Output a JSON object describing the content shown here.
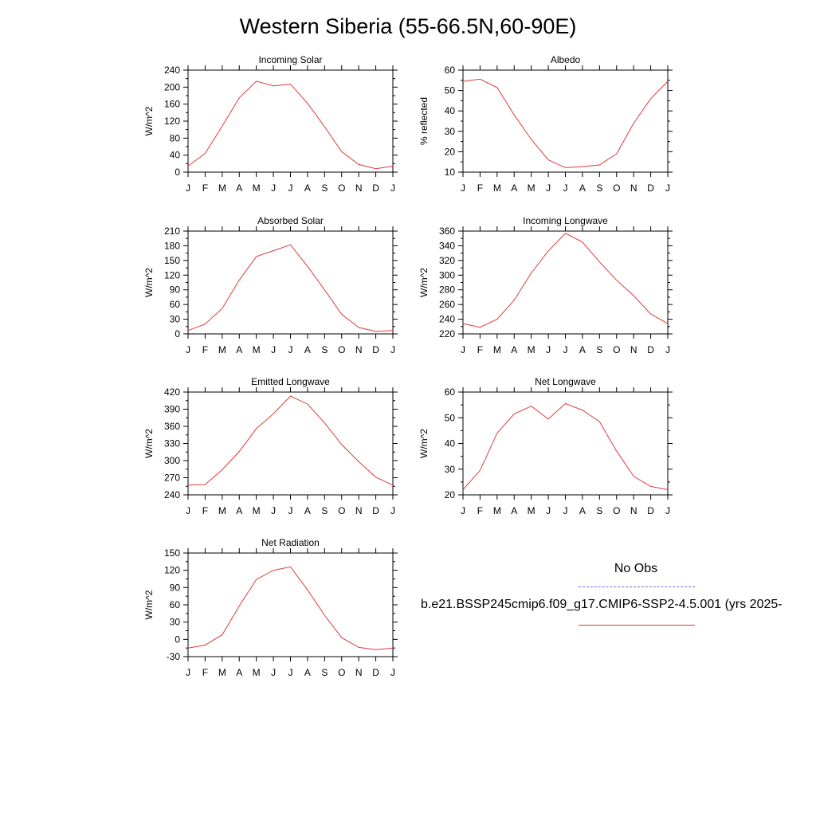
{
  "title": "Western Siberia (55-66.5N,60-90E)",
  "legend": {
    "obs_label": "No Obs",
    "obs_color": "#6f6fe0",
    "case_label": "b.e21.BSSP245cmip6.f09_g17.CMIP6-SSP2-4.5.001 (yrs 2025-",
    "case_color": "#e03a3a"
  },
  "chart_data": [
    {
      "type": "line",
      "title": "Incoming Solar",
      "ylabel": "W/m^2",
      "categories": [
        "J",
        "F",
        "M",
        "A",
        "M",
        "J",
        "J",
        "A",
        "S",
        "O",
        "N",
        "D",
        "J"
      ],
      "ylim": [
        0,
        240
      ],
      "yticks": [
        0,
        40,
        80,
        120,
        160,
        200,
        240
      ],
      "values": [
        14,
        44,
        108,
        175,
        214,
        203,
        207,
        162,
        107,
        48,
        18,
        8,
        14
      ],
      "color": "#e03a3a"
    },
    {
      "type": "line",
      "title": "Albedo",
      "ylabel": "% reflected",
      "categories": [
        "J",
        "F",
        "M",
        "A",
        "M",
        "J",
        "J",
        "A",
        "S",
        "O",
        "N",
        "D",
        "J"
      ],
      "ylim": [
        10,
        60
      ],
      "yticks": [
        10,
        20,
        30,
        40,
        50,
        60
      ],
      "values": [
        54.5,
        55.6,
        51.5,
        38,
        26,
        16,
        12.2,
        12.7,
        13.5,
        19,
        34,
        46,
        54.5
      ],
      "color": "#e03a3a"
    },
    {
      "type": "line",
      "title": "Absorbed Solar",
      "ylabel": "W/m^2",
      "categories": [
        "J",
        "F",
        "M",
        "A",
        "M",
        "J",
        "J",
        "A",
        "S",
        "O",
        "N",
        "D",
        "J"
      ],
      "ylim": [
        0,
        210
      ],
      "yticks": [
        0,
        30,
        60,
        90,
        120,
        150,
        180,
        210
      ],
      "values": [
        7,
        20,
        52,
        110,
        158,
        170,
        182,
        138,
        90,
        40,
        13,
        5,
        7
      ],
      "color": "#e03a3a"
    },
    {
      "type": "line",
      "title": "Incoming Longwave",
      "ylabel": "W/m^2",
      "categories": [
        "J",
        "F",
        "M",
        "A",
        "M",
        "J",
        "J",
        "A",
        "S",
        "O",
        "N",
        "D",
        "J"
      ],
      "ylim": [
        220,
        360
      ],
      "yticks": [
        220,
        240,
        260,
        280,
        300,
        320,
        340,
        360
      ],
      "values": [
        234,
        229,
        240,
        266,
        303,
        333,
        357,
        345,
        318,
        293,
        272,
        247,
        234
      ],
      "color": "#e03a3a"
    },
    {
      "type": "line",
      "title": "Emitted Longwave",
      "ylabel": "W/m^2",
      "categories": [
        "J",
        "F",
        "M",
        "A",
        "M",
        "J",
        "J",
        "A",
        "S",
        "O",
        "N",
        "D",
        "J"
      ],
      "ylim": [
        240,
        420
      ],
      "yticks": [
        240,
        270,
        300,
        330,
        360,
        390,
        420
      ],
      "values": [
        257,
        258,
        284,
        316,
        356,
        382,
        413,
        399,
        366,
        328,
        298,
        271,
        257
      ],
      "color": "#e03a3a"
    },
    {
      "type": "line",
      "title": "Net Longwave",
      "ylabel": "W/m^2",
      "categories": [
        "J",
        "F",
        "M",
        "A",
        "M",
        "J",
        "J",
        "A",
        "S",
        "O",
        "N",
        "D",
        "J"
      ],
      "ylim": [
        20,
        60
      ],
      "yticks": [
        20,
        30,
        40,
        50,
        60
      ],
      "values": [
        22,
        29.5,
        44,
        51.5,
        54.5,
        49.5,
        55.5,
        53,
        48.5,
        37,
        27.2,
        23.3,
        22
      ],
      "color": "#e03a3a"
    },
    {
      "type": "line",
      "title": "Net Radiation",
      "ylabel": "W/m^2",
      "categories": [
        "J",
        "F",
        "M",
        "A",
        "M",
        "J",
        "J",
        "A",
        "S",
        "O",
        "N",
        "D",
        "J"
      ],
      "ylim": [
        -30,
        150
      ],
      "yticks": [
        -30,
        0,
        30,
        60,
        90,
        120,
        150
      ],
      "values": [
        -15,
        -10,
        8,
        58,
        104,
        120,
        126,
        86,
        42,
        3,
        -14,
        -18,
        -15
      ],
      "color": "#e03a3a"
    }
  ]
}
